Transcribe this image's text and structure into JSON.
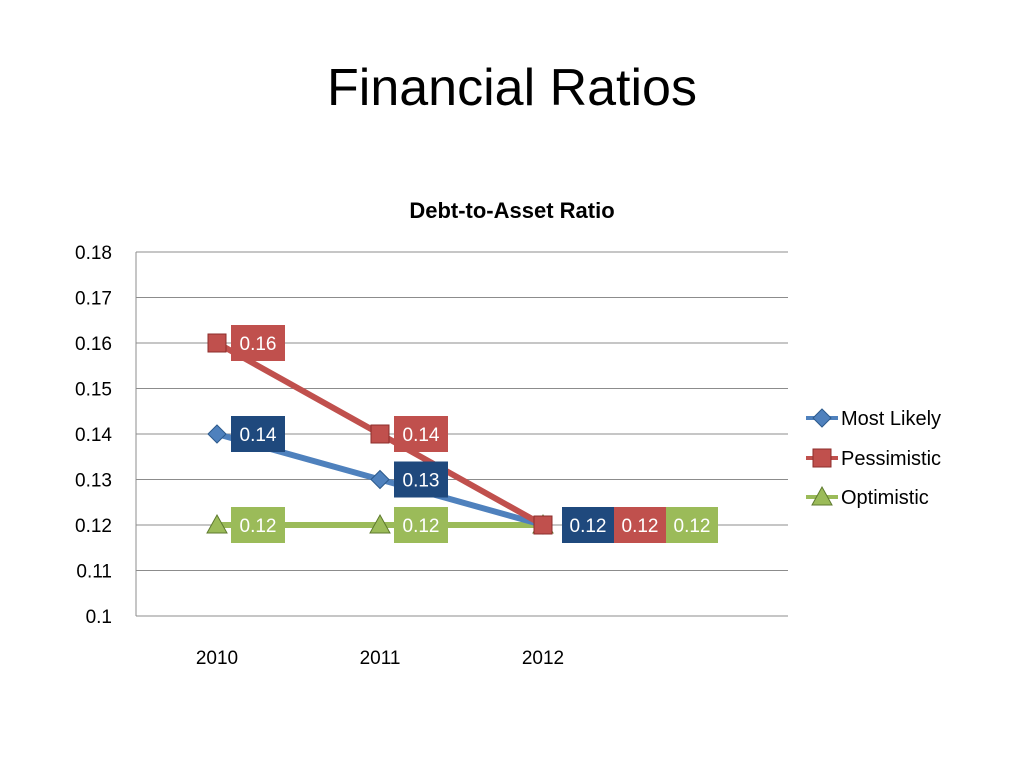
{
  "slide": {
    "title": "Financial Ratios"
  },
  "chart_data": {
    "type": "line",
    "title": "Debt-to-Asset Ratio",
    "xlabel": "",
    "ylabel": "",
    "categories": [
      "2010",
      "2011",
      "2012"
    ],
    "ylim": [
      0.1,
      0.18
    ],
    "yticks": [
      "0.18",
      "0.17",
      "0.16",
      "0.15",
      "0.14",
      "0.13",
      "0.12",
      "0.11",
      "0.1"
    ],
    "grid": true,
    "legend_position": "right",
    "series": [
      {
        "name": "Most Likely",
        "values": [
          0.14,
          0.13,
          0.12
        ],
        "labels": [
          "0.14",
          "0.13",
          "0.12"
        ],
        "color": "#4F81BD",
        "label_bg": "#1F497D",
        "marker": "diamond"
      },
      {
        "name": "Pessimistic",
        "values": [
          0.16,
          0.14,
          0.12
        ],
        "labels": [
          "0.16",
          "0.14",
          "0.12"
        ],
        "color": "#C0504D",
        "label_bg": "#C0504D",
        "marker": "square"
      },
      {
        "name": "Optimistic",
        "values": [
          0.12,
          0.12,
          0.12
        ],
        "labels": [
          "0.12",
          "0.12",
          "0.12"
        ],
        "color": "#9BBB59",
        "label_bg": "#9BBB59",
        "marker": "triangle"
      }
    ]
  }
}
